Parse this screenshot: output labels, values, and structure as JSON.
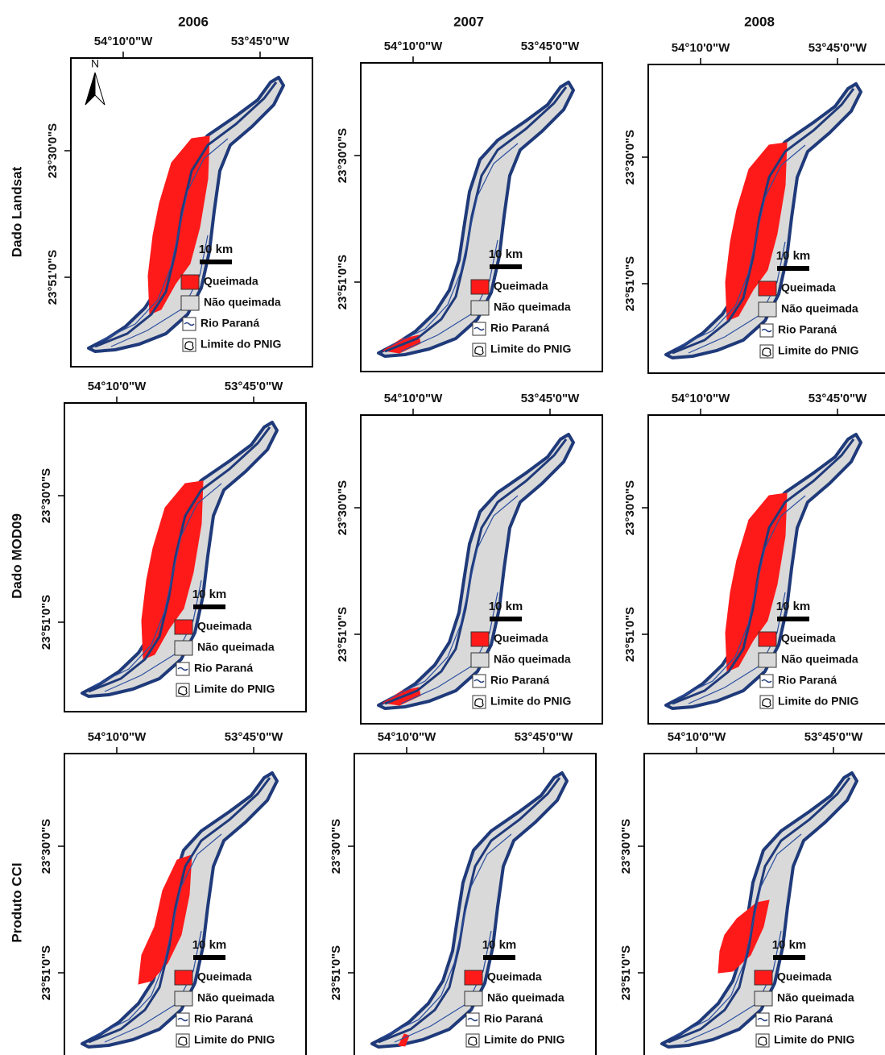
{
  "column_titles": [
    "2006",
    "2007",
    "2008"
  ],
  "row_titles": [
    "Dado Landsat",
    "Dado MOD09",
    "Produto CCI"
  ],
  "map_labels": {
    "longitudes": [
      "54°10'0\"W",
      "53°45'0\"W"
    ],
    "latitudes": [
      "23°30'0\"S",
      "23°51'0\"S"
    ],
    "scale_bar": "10 km",
    "north": "N",
    "legend": [
      "Queimada",
      "Não queimada",
      "Rio Paraná",
      "Limite do PNIG"
    ]
  }
}
